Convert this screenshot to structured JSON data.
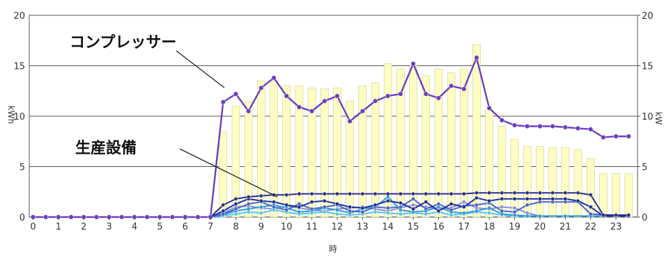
{
  "chart_data": {
    "type": "bar",
    "xlabel": "時",
    "ylabel_left": "kWh",
    "ylabel_right": "kW",
    "ylim": [
      0,
      20
    ],
    "y_ticks": [
      0,
      5,
      10,
      15,
      20
    ],
    "x_ticks": [
      0,
      1,
      2,
      3,
      4,
      5,
      6,
      7,
      8,
      9,
      10,
      11,
      12,
      13,
      14,
      15,
      16,
      17,
      18,
      19,
      20,
      21,
      22,
      23
    ],
    "x_tick_labels": [
      "0",
      "1",
      "2",
      "3",
      "4",
      "5",
      "6",
      "7",
      "8",
      "9",
      "10",
      "11",
      "12",
      "13",
      "14",
      "15",
      "16",
      "17",
      "18",
      "19",
      "20",
      "21",
      "22",
      "23"
    ],
    "y_tick_labels": [
      "0",
      "5",
      "10",
      "15",
      "20"
    ],
    "grid": true,
    "bars": {
      "x": [
        7.5,
        8,
        8.5,
        9,
        9.5,
        10,
        10.5,
        11,
        11.5,
        12,
        12.5,
        13,
        13.5,
        14,
        14.5,
        15,
        15.5,
        16,
        16.5,
        17,
        17.5,
        18,
        18.5,
        19,
        19.5,
        20,
        20.5,
        21,
        21.5,
        22,
        22.5,
        23,
        23.5
      ],
      "values": [
        8.5,
        11,
        11.5,
        13.5,
        13.5,
        13,
        13,
        12.8,
        12.7,
        12.8,
        11.5,
        13,
        13.3,
        15.2,
        14.7,
        15,
        14,
        14.7,
        14.3,
        14.7,
        17.1,
        10.6,
        9,
        7.7,
        7,
        7,
        6.9,
        6.9,
        6.7,
        5.8,
        4.3,
        4.3,
        4.3
      ],
      "color": "#fdfdc4"
    },
    "series": [
      {
        "name": "コンプレッサー",
        "color": "#6a3fbf",
        "x": [
          0,
          0.5,
          1,
          1.5,
          2,
          2.5,
          3,
          3.5,
          4,
          4.5,
          5,
          5.5,
          6,
          6.5,
          7,
          7.5,
          8,
          8.5,
          9,
          9.5,
          10,
          10.5,
          11,
          11.5,
          12,
          12.5,
          13,
          13.5,
          14,
          14.5,
          15,
          15.5,
          16,
          16.5,
          17,
          17.5,
          18,
          18.5,
          19,
          19.5,
          20,
          20.5,
          21,
          21.5,
          22,
          22.5,
          23,
          23.5
        ],
        "values": [
          0,
          0,
          0,
          0,
          0,
          0,
          0,
          0,
          0,
          0,
          0,
          0,
          0,
          0,
          0,
          11.4,
          12.2,
          10.5,
          12.8,
          13.8,
          12.0,
          10.9,
          10.5,
          11.5,
          12.0,
          9.5,
          10.5,
          11.5,
          12.0,
          12.2,
          15.2,
          12.2,
          11.8,
          13.0,
          12.7,
          15.8,
          10.8,
          9.6,
          9.1,
          9.0,
          9.0,
          9.0,
          8.9,
          8.8,
          8.7,
          7.9,
          8.0,
          8.0
        ]
      },
      {
        "name": "生産設備",
        "color": "#2d2a8c",
        "x": [
          0,
          0.5,
          1,
          1.5,
          2,
          2.5,
          3,
          3.5,
          4,
          4.5,
          5,
          5.5,
          6,
          6.5,
          7,
          7.5,
          8,
          8.5,
          9,
          9.5,
          10,
          10.5,
          11,
          11.5,
          12,
          12.5,
          13,
          13.5,
          14,
          14.5,
          15,
          15.5,
          16,
          16.5,
          17,
          17.5,
          18,
          18.5,
          19,
          19.5,
          20,
          20.5,
          21,
          21.5,
          22,
          22.5,
          23,
          23.5
        ],
        "values": [
          0,
          0,
          0,
          0,
          0,
          0,
          0,
          0,
          0,
          0,
          0,
          0,
          0,
          0,
          0,
          1.2,
          1.8,
          2.0,
          2.1,
          2.2,
          2.2,
          2.3,
          2.3,
          2.3,
          2.3,
          2.3,
          2.3,
          2.3,
          2.3,
          2.3,
          2.3,
          2.3,
          2.3,
          2.3,
          2.3,
          2.4,
          2.4,
          2.4,
          2.4,
          2.4,
          2.4,
          2.4,
          2.4,
          2.4,
          2.2,
          0.2,
          0.2,
          0.2
        ]
      },
      {
        "color": "#1e2f9c",
        "x": [
          0,
          7,
          7.5,
          8,
          8.5,
          9,
          9.5,
          10,
          10.5,
          11,
          11.5,
          12,
          12.5,
          13,
          13.5,
          14,
          14.5,
          15,
          15.5,
          16,
          16.5,
          17,
          17.5,
          18,
          18.5,
          19,
          19.5,
          20,
          20.5,
          21,
          21.5,
          22,
          22.5,
          23.5
        ],
        "values": [
          0,
          0,
          0.6,
          1.3,
          1.8,
          1.6,
          1.5,
          1.2,
          1.0,
          1.5,
          1.6,
          1.3,
          1.0,
          0.9,
          1.2,
          1.6,
          1.4,
          0.8,
          1.5,
          0.6,
          1.3,
          1.0,
          1.9,
          1.6,
          1.8,
          1.8,
          1.8,
          1.8,
          1.8,
          1.8,
          1.6,
          1.0,
          0.1,
          0.1
        ]
      },
      {
        "color": "#4a63c9",
        "x": [
          0,
          7,
          7.5,
          8,
          8.5,
          9,
          9.5,
          10,
          10.5,
          11,
          11.5,
          12,
          12.5,
          13,
          13.5,
          14,
          14.5,
          15,
          15.5,
          16,
          16.5,
          17,
          17.5,
          18,
          18.5,
          19,
          19.5,
          20,
          20.5,
          21,
          21.5,
          22,
          23.5
        ],
        "values": [
          0,
          0,
          0.3,
          0.8,
          1.3,
          1.5,
          1.0,
          0.7,
          1.3,
          0.8,
          1.0,
          1.2,
          0.6,
          0.5,
          1.0,
          0.9,
          1.0,
          1.8,
          0.8,
          1.3,
          0.7,
          1.1,
          1.2,
          1.4,
          0.6,
          0.5,
          1.2,
          1.5,
          1.5,
          1.5,
          1.5,
          0.3,
          0.1
        ]
      },
      {
        "color": "#2b9ad9",
        "x": [
          0,
          7,
          7.5,
          8,
          8.5,
          9,
          9.5,
          10,
          10.5,
          11,
          11.5,
          12,
          12.5,
          13,
          13.5,
          14,
          14.5,
          15,
          15.5,
          16,
          16.5,
          17,
          17.5,
          18,
          18.5,
          19,
          19.5,
          20,
          21,
          22,
          23.5
        ],
        "values": [
          0,
          0,
          0.2,
          0.6,
          0.8,
          1.0,
          1.2,
          0.9,
          0.5,
          0.6,
          0.9,
          0.7,
          0.4,
          0.8,
          1.0,
          2.0,
          0.7,
          0.5,
          0.6,
          1.0,
          0.5,
          0.4,
          0.6,
          0.9,
          0.3,
          0.2,
          0.1,
          0.1,
          0.1,
          0.1,
          0.1
        ]
      },
      {
        "color": "#58c4ec",
        "x": [
          0,
          7,
          7.5,
          8,
          8.5,
          9,
          9.5,
          10,
          10.5,
          11,
          11.5,
          12,
          12.5,
          13,
          13.5,
          14,
          14.5,
          15,
          15.5,
          16,
          16.5,
          17,
          17.5,
          18,
          18.5,
          19,
          23.5
        ],
        "values": [
          0,
          0,
          0.1,
          0.3,
          0.5,
          0.4,
          0.7,
          0.5,
          0.3,
          0.4,
          0.5,
          0.3,
          0.2,
          0.3,
          0.5,
          0.4,
          0.3,
          0.4,
          0.3,
          0.5,
          0.2,
          0.3,
          0.5,
          0.4,
          0.2,
          0.1,
          0.1
        ]
      },
      {
        "color": "#8a8ee0",
        "x": [
          0,
          7,
          7.5,
          8,
          8.5,
          9,
          9.5,
          10,
          10.5,
          11,
          11.5,
          12,
          12.5,
          13,
          13.5,
          14,
          14.5,
          15,
          15.5,
          16,
          16.5,
          17,
          17.5,
          18,
          18.5,
          19,
          19.5,
          20,
          23.5
        ],
        "values": [
          0,
          0,
          0.4,
          1.0,
          1.1,
          0.9,
          0.8,
          1.1,
          0.9,
          0.7,
          0.6,
          0.8,
          0.9,
          1.0,
          0.8,
          0.6,
          0.9,
          1.2,
          1.0,
          0.8,
          0.9,
          1.5,
          0.9,
          0.8,
          1.0,
          0.9,
          0.4,
          0.1,
          0.1
        ]
      }
    ],
    "annotations": [
      {
        "text": "コンプレッサー"
      },
      {
        "text": "生産設備"
      }
    ]
  }
}
